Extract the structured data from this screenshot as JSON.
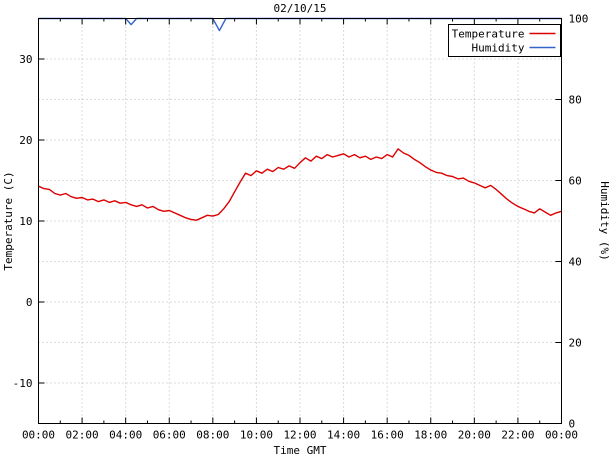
{
  "chart_data": {
    "type": "line",
    "title": "02/10/15",
    "xlabel": "Time GMT",
    "ylabel_left": "Temperature (C)",
    "ylabel_right": "Humidity (%)",
    "grid": true,
    "legend_position": "top-right",
    "colors": {
      "temperature": "#dd0000",
      "humidity": "#3366cc",
      "grid": "#b8b8b8",
      "border": "#000000"
    },
    "x_axis": {
      "unit": "hours",
      "range": [
        0,
        24
      ],
      "major_tick_hours": [
        0,
        2,
        4,
        6,
        8,
        10,
        12,
        14,
        16,
        18,
        20,
        22,
        24
      ],
      "major_tick_labels": [
        "00:00",
        "02:00",
        "04:00",
        "06:00",
        "08:00",
        "10:00",
        "12:00",
        "14:00",
        "16:00",
        "18:00",
        "20:00",
        "22:00",
        "00:00"
      ],
      "minor_tick_hours": [
        1,
        3,
        5,
        7,
        9,
        11,
        13,
        15,
        17,
        19,
        21,
        23
      ]
    },
    "y_axis_left": {
      "range": [
        -15,
        35
      ],
      "tick_values": [
        -10,
        0,
        10,
        20,
        30
      ],
      "tick_labels": [
        "-10",
        "0",
        "10",
        "20",
        "30"
      ]
    },
    "y_axis_right": {
      "range": [
        0,
        100
      ],
      "tick_values": [
        0,
        20,
        40,
        60,
        80,
        100
      ],
      "tick_labels": [
        "0",
        "20",
        "40",
        "60",
        "80",
        "100"
      ]
    },
    "series": [
      {
        "name": "Temperature",
        "axis": "left",
        "color": "#dd0000",
        "t0": 0,
        "dt": 0.25,
        "values": [
          14.3,
          14.0,
          13.9,
          13.4,
          13.2,
          13.4,
          13.0,
          12.8,
          12.9,
          12.6,
          12.7,
          12.4,
          12.6,
          12.3,
          12.5,
          12.2,
          12.3,
          12.0,
          11.8,
          12.0,
          11.6,
          11.8,
          11.4,
          11.2,
          11.3,
          11.0,
          10.7,
          10.4,
          10.2,
          10.1,
          10.4,
          10.7,
          10.6,
          10.8,
          11.5,
          12.4,
          13.6,
          14.8,
          15.9,
          15.6,
          16.2,
          15.9,
          16.4,
          16.1,
          16.6,
          16.4,
          16.8,
          16.5,
          17.2,
          17.8,
          17.4,
          18.0,
          17.7,
          18.2,
          17.9,
          18.1,
          18.3,
          17.9,
          18.2,
          17.8,
          18.0,
          17.6,
          17.9,
          17.7,
          18.2,
          17.9,
          18.9,
          18.4,
          18.1,
          17.6,
          17.2,
          16.7,
          16.3,
          16.0,
          15.9,
          15.6,
          15.5,
          15.2,
          15.3,
          14.9,
          14.7,
          14.4,
          14.1,
          14.4,
          13.9,
          13.3,
          12.7,
          12.2,
          11.8,
          11.5,
          11.2,
          11.0,
          11.5,
          11.1,
          10.7,
          11.0,
          11.2
        ]
      },
      {
        "name": "Humidity",
        "axis": "right",
        "color": "#3366cc",
        "points": [
          [
            0,
            100
          ],
          [
            4.0,
            100
          ],
          [
            4.25,
            98.5
          ],
          [
            4.5,
            100
          ],
          [
            8.0,
            100
          ],
          [
            8.3,
            97
          ],
          [
            8.6,
            100
          ],
          [
            24,
            100
          ]
        ]
      }
    ]
  }
}
